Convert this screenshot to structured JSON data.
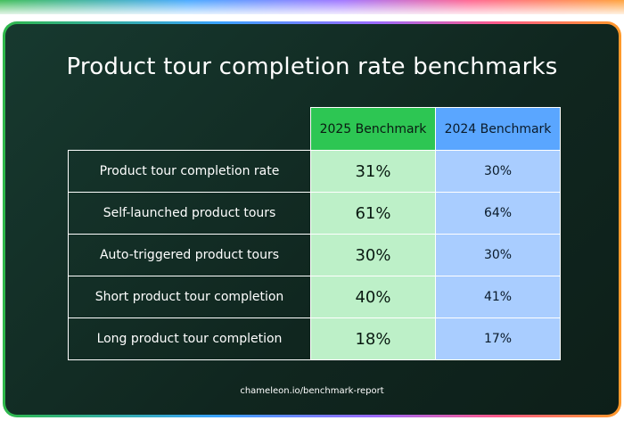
{
  "title": "Product tour completion rate benchmarks",
  "footer": "chameleon.io/benchmark-report",
  "colors": {
    "card_bg": "#13312a",
    "header_2025": "#2dc653",
    "cell_2025": "#bdf0c8",
    "header_2024": "#5aa6ff",
    "cell_2024": "#a9cdff"
  },
  "chart_data": {
    "type": "table",
    "title": "Product tour completion rate benchmarks",
    "columns": [
      "2025 Benchmark",
      "2024 Benchmark"
    ],
    "rows": [
      {
        "label": "Product tour completion rate",
        "v2025": "31%",
        "v2024": "30%"
      },
      {
        "label": "Self-launched product tours",
        "v2025": "61%",
        "v2024": "64%"
      },
      {
        "label": "Auto-triggered product tours",
        "v2025": "30%",
        "v2024": "30%"
      },
      {
        "label": "Short product tour completion",
        "v2025": "40%",
        "v2024": "41%"
      },
      {
        "label": "Long product tour completion",
        "v2025": "18%",
        "v2024": "17%"
      }
    ]
  }
}
